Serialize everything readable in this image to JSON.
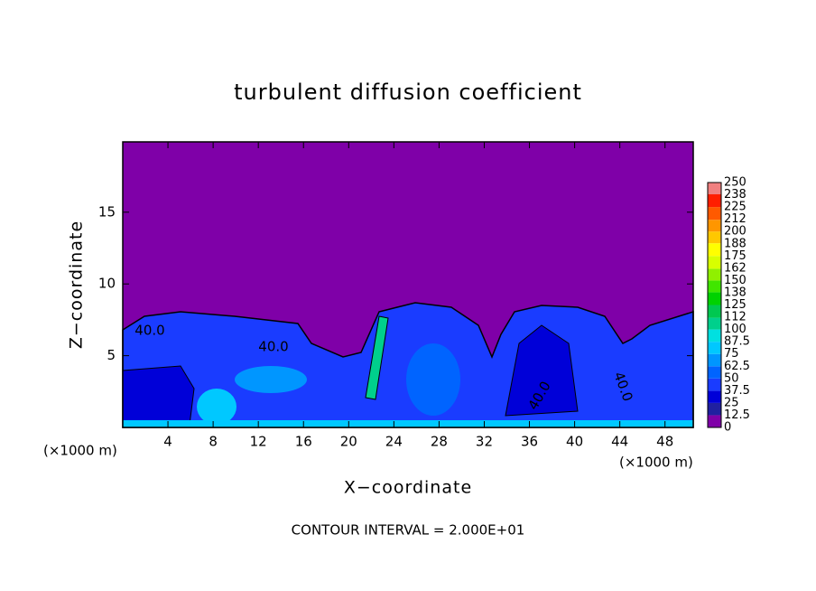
{
  "chart_data": {
    "type": "contour",
    "title": "turbulent diffusion coefficient",
    "x_label": "X−coordinate",
    "y_label": "Z−coordinate",
    "x_unit_label": "(×1000 m)",
    "footer": "CONTOUR INTERVAL = 2.000E+01",
    "contour_labels": [
      "40.0",
      "40.0",
      "40.0",
      "40.0"
    ],
    "xlim": [
      0,
      50.5
    ],
    "ylim": [
      0,
      19.9
    ],
    "xticks": [
      4,
      8,
      12,
      16,
      20,
      24,
      28,
      32,
      36,
      40,
      44,
      48
    ],
    "yticks": [
      5,
      10,
      15
    ],
    "background_color": "#7f00a8",
    "colorbar": {
      "levels": [
        0,
        12.5,
        25,
        37.5,
        50,
        62.5,
        75,
        87.5,
        100,
        112,
        125,
        138,
        150,
        162,
        175,
        188,
        200,
        212,
        225,
        238,
        250
      ],
      "colors": [
        "#7f00a8",
        "#2020a0",
        "#0000d8",
        "#1a3cff",
        "#0064ff",
        "#0096ff",
        "#00c8ff",
        "#00e0e0",
        "#00d08c",
        "#00c850",
        "#00d200",
        "#40e600",
        "#90f000",
        "#d8ff00",
        "#ffff00",
        "#ffc800",
        "#ff9600",
        "#ff5a00",
        "#ff1e00",
        "#f08080"
      ]
    }
  }
}
